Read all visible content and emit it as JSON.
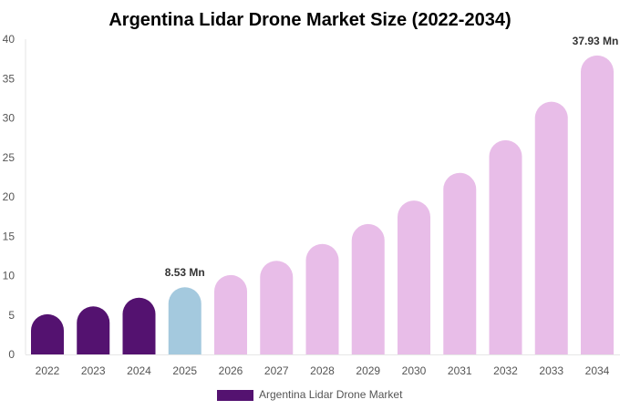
{
  "chart_data": {
    "type": "bar",
    "title": "Argentina Lidar Drone Market Size (2022-2034)",
    "categories": [
      "2022",
      "2023",
      "2024",
      "2025",
      "2026",
      "2027",
      "2028",
      "2029",
      "2030",
      "2031",
      "2032",
      "2033",
      "2034"
    ],
    "series": [
      {
        "name": "Argentina Lidar Drone Market",
        "values": [
          5.1,
          6.1,
          7.2,
          8.53,
          10.07,
          11.88,
          14.02,
          16.54,
          19.52,
          23.03,
          27.18,
          32.07,
          37.93
        ]
      }
    ],
    "data_labels": {
      "3": "8.53 Mn",
      "12": "37.93 Mn"
    },
    "ylim": [
      0,
      40
    ],
    "yticks": [
      0,
      5,
      10,
      15,
      20,
      25,
      30,
      35,
      40
    ],
    "xlabel": "",
    "ylabel": "",
    "grid": false,
    "legend_position": "bottom",
    "colors": {
      "historical": "#541270",
      "current": "#a4c9de",
      "forecast": "#e8bde8"
    }
  }
}
